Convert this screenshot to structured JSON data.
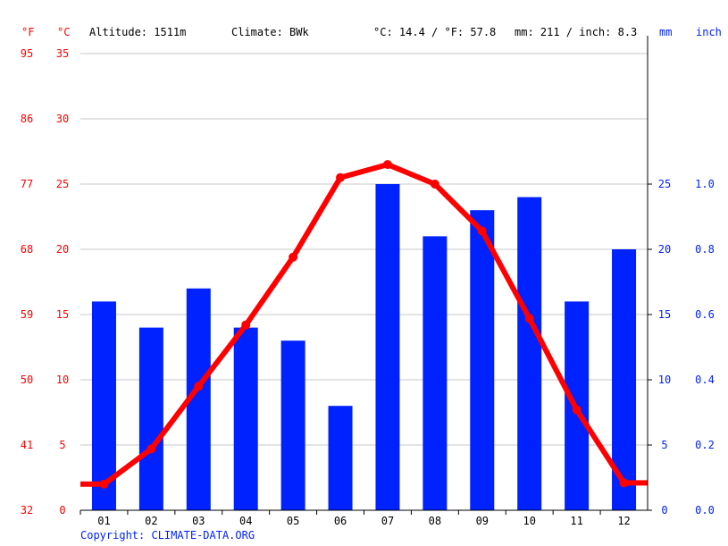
{
  "header": {
    "f_unit": "°F",
    "c_unit": "°C",
    "altitude": "Altitude: 1511m",
    "climate": "Climate: BWk",
    "temp_avg": "°C: 14.4 / °F: 57.8",
    "precip_total": "mm: 211 / inch: 8.3",
    "mm_unit": "mm",
    "inch_unit": "inch"
  },
  "copyright": "Copyright: CLIMATE-DATA.ORG",
  "colors": {
    "temperature": "#ff0000",
    "precipitation": "#0022ff",
    "grid": "#c8c8c8"
  },
  "chart_data": {
    "type": "bar+line",
    "categories": [
      "01",
      "02",
      "03",
      "04",
      "05",
      "06",
      "07",
      "08",
      "09",
      "10",
      "11",
      "12"
    ],
    "series": [
      {
        "type": "bar",
        "axis": "right-mm",
        "values": [
          16,
          14,
          17,
          14,
          13,
          8,
          25,
          21,
          23,
          24,
          16,
          20
        ]
      },
      {
        "type": "line",
        "axis": "left-celsius",
        "values": [
          2.0,
          4.7,
          9.5,
          14.2,
          19.4,
          25.5,
          26.5,
          25.0,
          21.4,
          14.7,
          7.7,
          2.1
        ]
      }
    ],
    "left_axis_c": {
      "ticks": [
        "0",
        "5",
        "10",
        "15",
        "20",
        "25",
        "30",
        "35"
      ],
      "ylim": [
        0,
        35
      ]
    },
    "left_axis_f": {
      "ticks": [
        "32",
        "41",
        "50",
        "59",
        "68",
        "77",
        "86",
        "95"
      ]
    },
    "right_axis_mm": {
      "ticks": [
        "0",
        "5",
        "10",
        "15",
        "20",
        "25"
      ],
      "ylim": [
        0,
        35
      ]
    },
    "right_axis_inch": {
      "ticks": [
        "0.0",
        "0.2",
        "0.4",
        "0.6",
        "0.8",
        "1.0"
      ]
    },
    "grid": true
  }
}
